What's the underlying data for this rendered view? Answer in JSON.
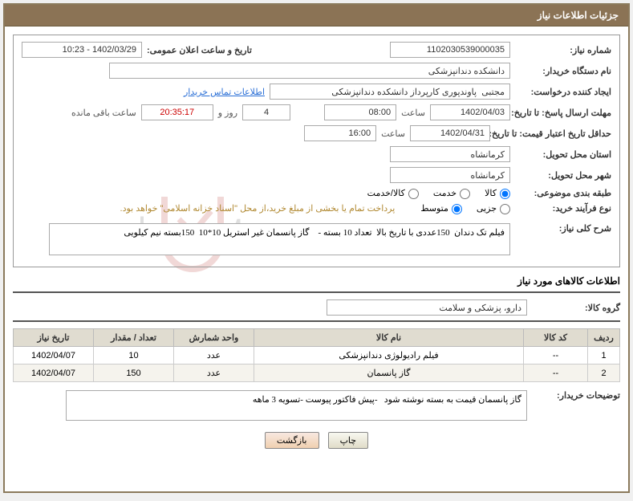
{
  "title": "جزئیات اطلاعات نیاز",
  "labels": {
    "need_no": "شماره نیاز:",
    "announce_dt": "تاریخ و ساعت اعلان عمومی:",
    "org": "نام دستگاه خریدار:",
    "requester": "ایجاد کننده درخواست:",
    "contact": "اطلاعات تماس خریدار",
    "response_deadline": "مهلت ارسال پاسخ: تا تاریخ:",
    "time": "ساعت",
    "days_and": "روز و",
    "hours_remaining": "ساعت باقی مانده",
    "price_validity": "حداقل تاریخ اعتبار قیمت: تا تاریخ:",
    "delivery_province": "استان محل تحویل:",
    "delivery_city": "شهر محل تحویل:",
    "category": "طبقه بندی موضوعی:",
    "purchase_type": "نوع فرآیند خرید:",
    "payment_note": "پرداخت تمام یا بخشی از مبلغ خرید،از محل \"اسناد خزانه اسلامی\" خواهد بود.",
    "need_summary": "شرح کلی نیاز:",
    "items_section": "اطلاعات کالاهای مورد نیاز",
    "group": "گروه کالا:",
    "desc": "توضیحات خریدار:",
    "print": "چاپ",
    "back": "بازگشت"
  },
  "radios": {
    "cat_goods": "کالا",
    "cat_service": "خدمت",
    "cat_both": "کالا/خدمت",
    "p_small": "جزیی",
    "p_medium": "متوسط"
  },
  "values": {
    "need_no": "1102030539000035",
    "announce_dt": "1402/03/29 - 10:23",
    "org": "دانشکده دندانپزشکی",
    "requester": "مجتبی  پاوندپوری کارپرداز دانشکده دندانپزشکی",
    "resp_date": "1402/04/03",
    "resp_time": "08:00",
    "days_left": "4",
    "countdown": "20:35:17",
    "price_date": "1402/04/31",
    "price_time": "16:00",
    "province": "کرمانشاه",
    "city": "کرمانشاه",
    "summary": "فیلم تک دندان  150عددی با تاریخ بالا  تعداد 10 بسته -    گاز پانسمان غیر استریل 10*10  150بسته نیم کیلویی",
    "group": "دارو، پزشکی و سلامت",
    "desc": "گاز پانسمان قیمت به بسته نوشته شود   -پیش فاکتور پیوست -تسویه 3 ماهه"
  },
  "table": {
    "headers": {
      "row": "ردیف",
      "code": "کد کالا",
      "name": "نام کالا",
      "unit": "واحد شمارش",
      "qty": "تعداد / مقدار",
      "date": "تاریخ نیاز"
    },
    "rows": [
      {
        "idx": "1",
        "code": "--",
        "name": "فیلم رادیولوژی دندانپزشکی",
        "unit": "عدد",
        "qty": "10",
        "date": "1402/04/07"
      },
      {
        "idx": "2",
        "code": "--",
        "name": "گاز پانسمان",
        "unit": "عدد",
        "qty": "150",
        "date": "1402/04/07"
      }
    ]
  }
}
